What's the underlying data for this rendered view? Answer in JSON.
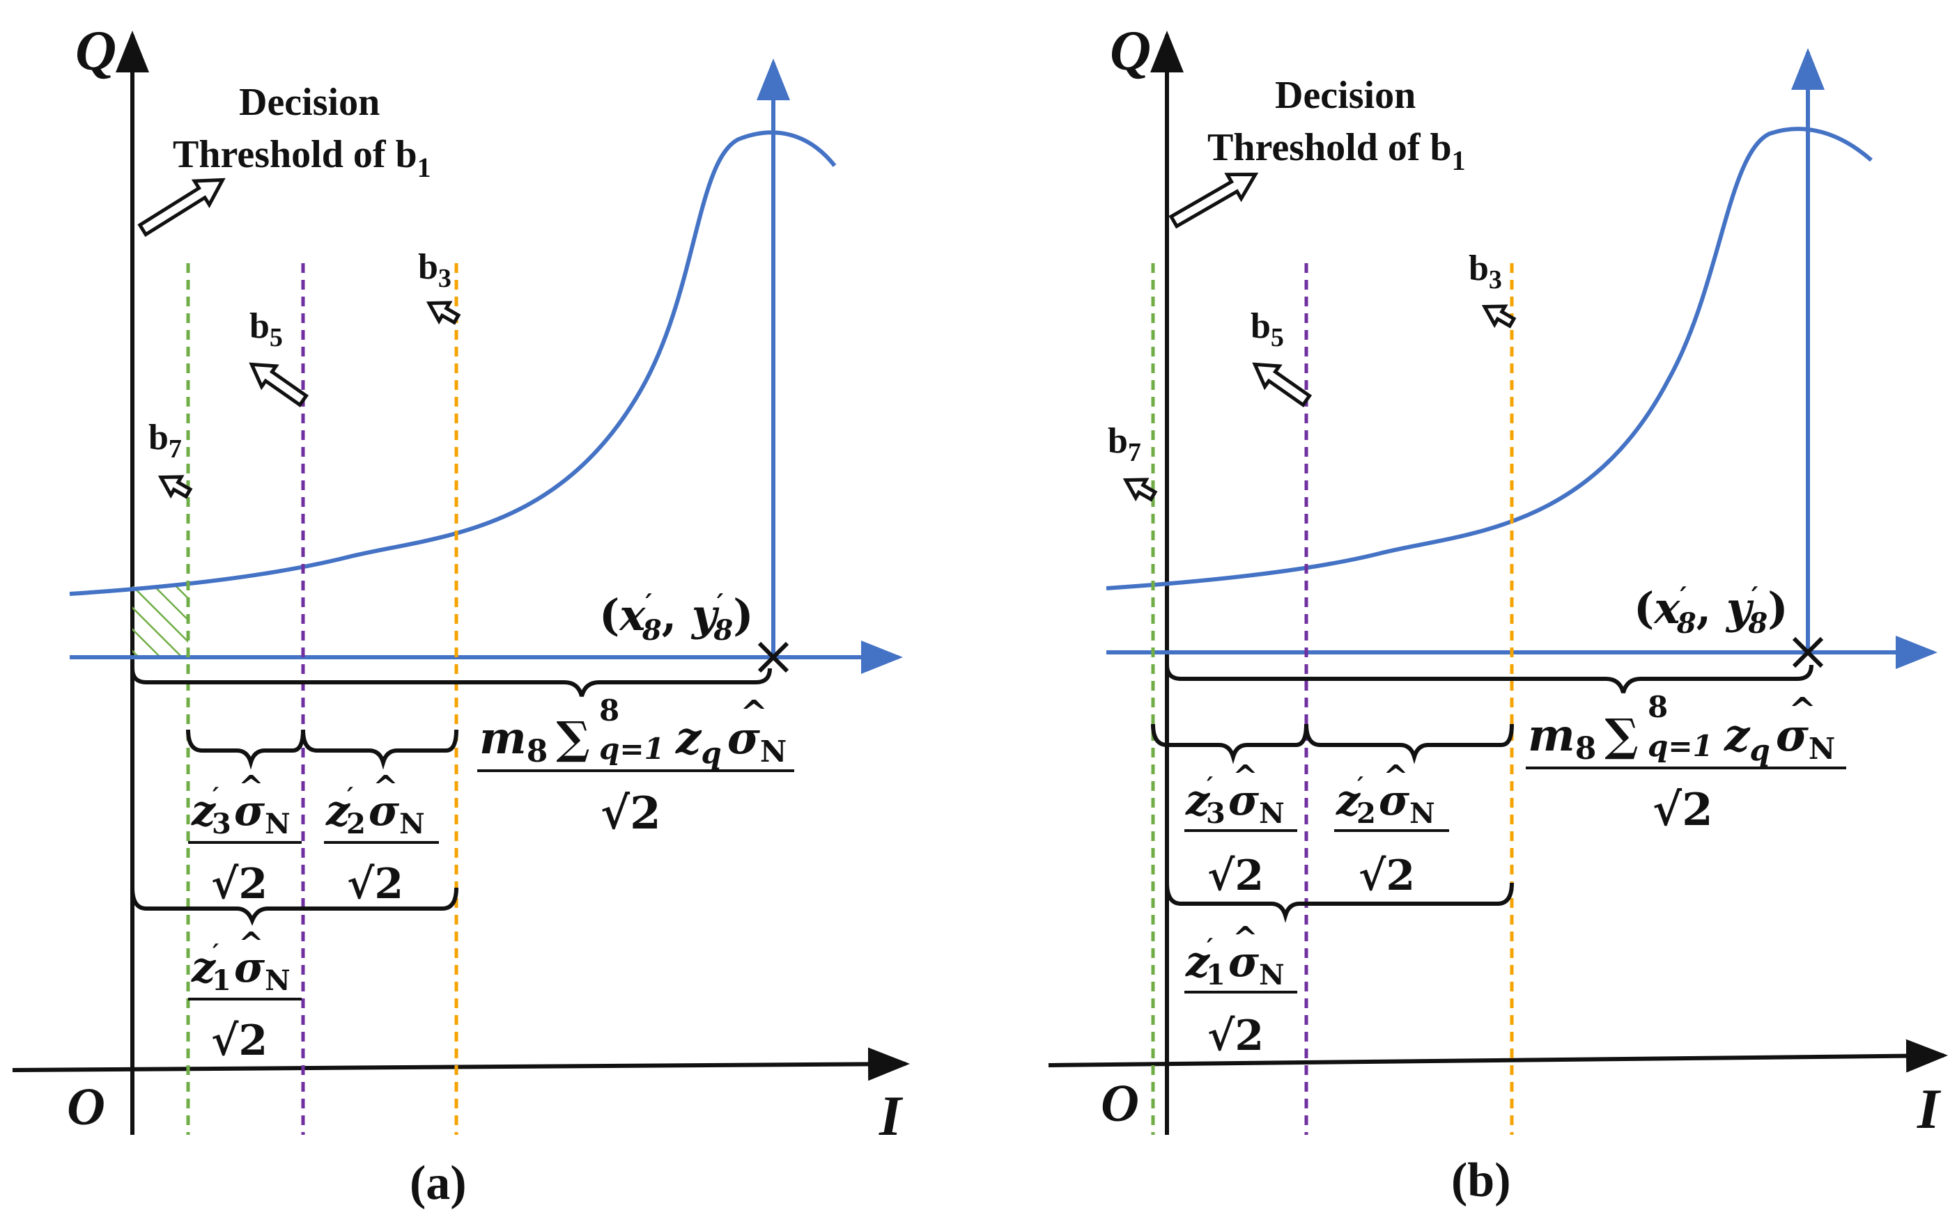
{
  "colors": {
    "axis": "#111111",
    "curve": "#4472C4",
    "green": "#70AD47",
    "purple": "#7030A0",
    "orange": "#F5A300"
  },
  "panels": [
    {
      "caption": "(a)",
      "axis_q": "Q",
      "axis_i": "I",
      "origin": "O",
      "threshold_line1": "Decision",
      "threshold_line2_main": "Threshold of b",
      "threshold_line2_sub": "1",
      "b7": {
        "main": "b",
        "sub": "7"
      },
      "b5": {
        "main": "b",
        "sub": "5"
      },
      "b3": {
        "main": "b",
        "sub": "3"
      },
      "point": {
        "var_x": "x",
        "var_y": "y",
        "sub": "8",
        "prime": "′"
      },
      "big_formula": {
        "m": "m",
        "m_sub": "8",
        "sum": "∑",
        "sum_lower": "q=1",
        "sum_upper": "8",
        "z": "z",
        "z_sub": "q",
        "sigma": "σ",
        "sigma_sub": "N",
        "hat": "^",
        "denominator": "√2"
      },
      "z3": {
        "z": "z",
        "sub": "3",
        "prime": "′",
        "sigma": "σ",
        "sigma_sub": "N",
        "hat": "^",
        "denominator": "√2"
      },
      "z2": {
        "z": "z",
        "sub": "2",
        "prime": "′",
        "sigma": "σ",
        "sigma_sub": "N",
        "hat": "^",
        "denominator": "√2"
      },
      "z1": {
        "z": "z",
        "sub": "1",
        "prime": "′",
        "sigma": "σ",
        "sigma_sub": "N",
        "hat": "^",
        "denominator": "√2"
      }
    },
    {
      "caption": "(b)",
      "axis_q": "Q",
      "axis_i": "I",
      "origin": "O",
      "threshold_line1": "Decision",
      "threshold_line2_main": "Threshold of b",
      "threshold_line2_sub": "1",
      "b7": {
        "main": "b",
        "sub": "7"
      },
      "b5": {
        "main": "b",
        "sub": "5"
      },
      "b3": {
        "main": "b",
        "sub": "3"
      },
      "point": {
        "var_x": "x",
        "var_y": "y",
        "sub": "8",
        "prime": "′"
      },
      "big_formula": {
        "m": "m",
        "m_sub": "8",
        "sum": "∑",
        "sum_lower": "q=1",
        "sum_upper": "8",
        "z": "z",
        "z_sub": "q",
        "sigma": "σ",
        "sigma_sub": "N",
        "hat": "^",
        "denominator": "√2"
      },
      "z3": {
        "z": "z",
        "sub": "3",
        "prime": "′",
        "sigma": "σ",
        "sigma_sub": "N",
        "hat": "^",
        "denominator": "√2"
      },
      "z2": {
        "z": "z",
        "sub": "2",
        "prime": "′",
        "sigma": "σ",
        "sigma_sub": "N",
        "hat": "^",
        "denominator": "√2"
      },
      "z1": {
        "z": "z",
        "sub": "1",
        "prime": "′",
        "sigma": "σ",
        "sigma_sub": "N",
        "hat": "^",
        "denominator": "√2"
      }
    }
  ]
}
